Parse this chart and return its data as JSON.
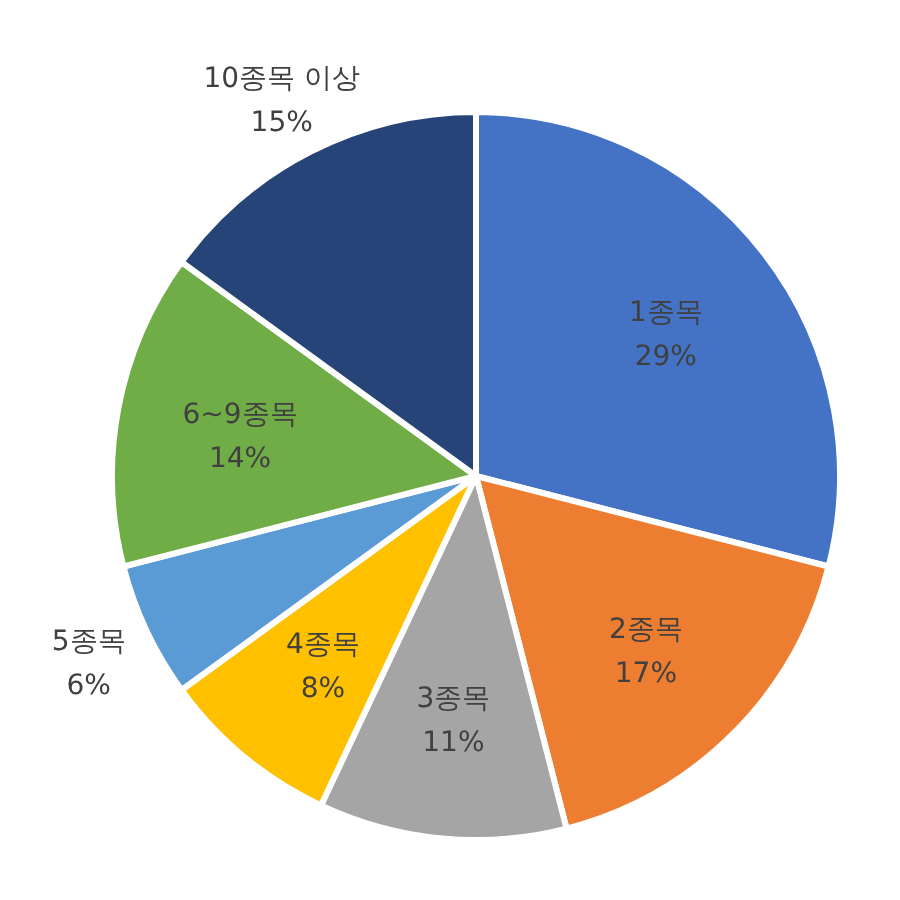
{
  "chart_data": {
    "type": "pie",
    "categories": [
      "1종목",
      "2종목",
      "3종목",
      "4종목",
      "5종목",
      "6~9종목",
      "10종목 이상"
    ],
    "values": [
      29,
      17,
      11,
      8,
      6,
      14,
      15
    ],
    "value_labels": [
      "29%",
      "17%",
      "11%",
      "8%",
      "6%",
      "14%",
      "15%"
    ],
    "colors": [
      "#4472c4",
      "#ed7d31",
      "#a5a5a5",
      "#ffc000",
      "#5b9bd5",
      "#70ad47",
      "#264478"
    ],
    "legend": false
  }
}
